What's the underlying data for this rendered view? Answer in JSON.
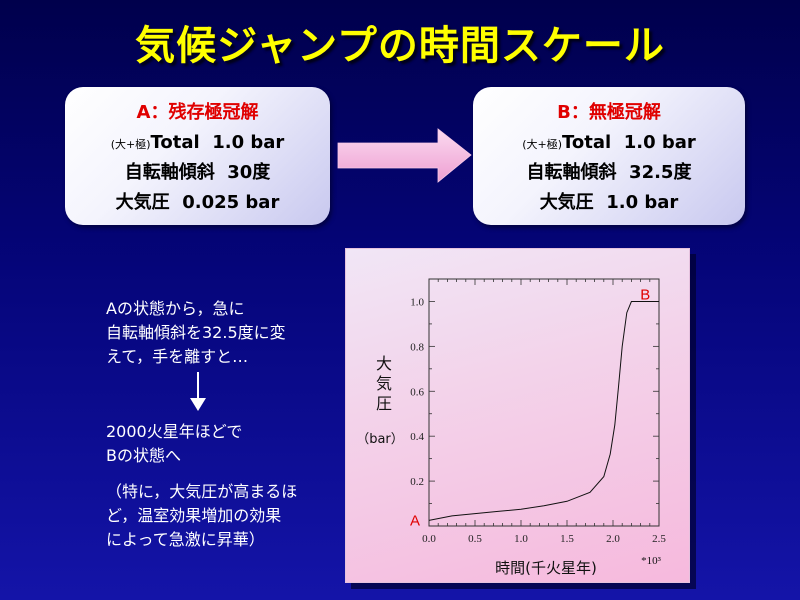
{
  "slide": {
    "title": "気候ジャンプの時間スケール"
  },
  "colors": {
    "title": "#ffff00",
    "heading": "#e00000",
    "annotation": "#e00000",
    "arrow": "#ee9fd2"
  },
  "state_a": {
    "heading": "A：残存極冠解",
    "total_prefix": "(大+極)",
    "total_value": "Total  1.0 bar",
    "tilt": "自転軸傾斜  30度",
    "pressure": "大気圧  0.025 bar"
  },
  "state_b": {
    "heading": "B：無極冠解",
    "total_prefix": "(大+極)",
    "total_value": "Total  1.0 bar",
    "tilt": "自転軸傾斜  32.5度",
    "pressure": "大気圧  1.0 bar"
  },
  "description": {
    "intro": [
      "Aの状態から，急に",
      "自転軸傾斜を32.5度に変",
      "えて，手を離すと…"
    ],
    "result": [
      "2000火星年ほどで",
      "Bの状態へ"
    ],
    "note": [
      "（特に，大気圧が高まるほ",
      "ど，温室効果増加の効果",
      "によって急激に昇華）"
    ]
  },
  "chart_data": {
    "type": "line",
    "xlabel": "時間(千火星年)",
    "x_multiplier": "*10³",
    "ylabel": "大気圧",
    "yunit": "（bar）",
    "xlim": [
      0,
      2.5
    ],
    "ylim": [
      0,
      1.1
    ],
    "x_ticks": [
      0,
      0.5,
      1.0,
      1.5,
      2.0,
      2.5
    ],
    "y_ticks": [
      0.2,
      0.4,
      0.6,
      0.8,
      1.0
    ],
    "grid": false,
    "legend": "none",
    "series": [
      {
        "x": [
          0,
          0.25,
          0.5,
          0.75,
          1.0,
          1.25,
          1.5,
          1.75,
          1.9,
          1.97,
          2.02,
          2.06,
          2.1,
          2.15,
          2.2,
          2.5
        ],
        "y": [
          0.025,
          0.045,
          0.055,
          0.065,
          0.075,
          0.09,
          0.11,
          0.15,
          0.22,
          0.32,
          0.45,
          0.62,
          0.8,
          0.95,
          1.0,
          1.0
        ]
      }
    ],
    "annotations": [
      {
        "text": "A",
        "x": 0,
        "y": 0.025,
        "position": "left"
      },
      {
        "text": "B",
        "x": 2.35,
        "y": 1.0,
        "position": "above"
      }
    ]
  }
}
